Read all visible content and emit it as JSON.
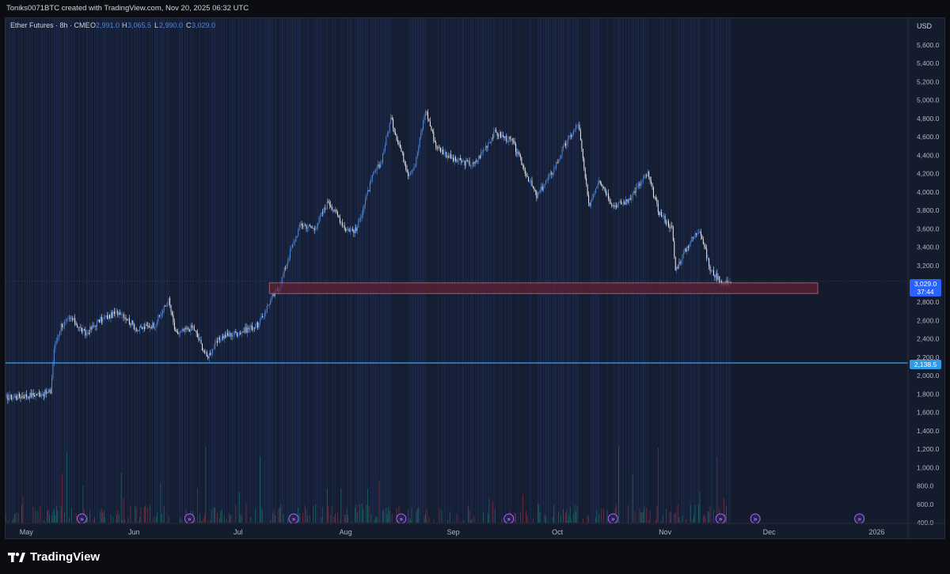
{
  "header": {
    "attribution": "Toniks0071BTC created with TradingView.com, Nov 20, 2025 06:32 UTC"
  },
  "legend": {
    "symbol": "Ether Futures · 8h · CME",
    "o_label": "O",
    "o_value": "2,991.0",
    "h_label": "H",
    "h_value": "3,065.5",
    "l_label": "L",
    "l_value": "2,990.0",
    "c_label": "C",
    "c_value": "3,029.0"
  },
  "price_axis": {
    "currency": "USD",
    "ticks": [
      "5,600.0",
      "5,400.0",
      "5,200.0",
      "5,000.0",
      "4,800.0",
      "4,600.0",
      "4,400.0",
      "4,200.0",
      "4,000.0",
      "3,800.0",
      "3,600.0",
      "3,400.0",
      "3,200.0",
      "2,800.0",
      "2,600.0",
      "2,400.0",
      "2,200.0",
      "2,000.0",
      "1,800.0",
      "1,600.0",
      "1,400.0",
      "1,200.0",
      "1,000.0",
      "800.0",
      "600.0",
      "400.0"
    ],
    "current_price_label": "3,029.0",
    "countdown_label": "37:44",
    "line_label": "2,138.5"
  },
  "time_axis": {
    "labels": [
      "May",
      "Jun",
      "Jul",
      "Aug",
      "Sep",
      "Oct",
      "Nov",
      "Dec",
      "2026"
    ]
  },
  "brand": {
    "name": "TradingView"
  },
  "colors": {
    "background": "#141b2d",
    "up_candle": "#4f86d9",
    "down_candle": "#e8e9ee",
    "volume_up": "#1f6e6a",
    "volume_down": "#8a2f3f",
    "horizontal_line": "#2f9be8",
    "zone_fill": "#5c2234",
    "zone_border": "#c4677c",
    "price_tag": "#2962ff"
  },
  "chart_data": {
    "type": "candlestick",
    "title": "Ether Futures · 8h · CME",
    "ylabel": "USD",
    "ylim": [
      400,
      5800
    ],
    "x_range": [
      "2025-04-25",
      "2026-01-10"
    ],
    "grid": false,
    "close_path": [
      [
        "2025-04-25",
        1760
      ],
      [
        "2025-05-03",
        1790
      ],
      [
        "2025-05-08",
        1820
      ],
      [
        "2025-05-09",
        2300
      ],
      [
        "2025-05-11",
        2550
      ],
      [
        "2025-05-14",
        2620
      ],
      [
        "2025-05-18",
        2450
      ],
      [
        "2025-05-22",
        2600
      ],
      [
        "2025-05-28",
        2700
      ],
      [
        "2025-06-02",
        2500
      ],
      [
        "2025-06-07",
        2560
      ],
      [
        "2025-06-11",
        2820
      ],
      [
        "2025-06-13",
        2450
      ],
      [
        "2025-06-18",
        2530
      ],
      [
        "2025-06-22",
        2200
      ],
      [
        "2025-06-26",
        2420
      ],
      [
        "2025-07-02",
        2480
      ],
      [
        "2025-07-07",
        2560
      ],
      [
        "2025-07-10",
        2800
      ],
      [
        "2025-07-13",
        2980
      ],
      [
        "2025-07-16",
        3350
      ],
      [
        "2025-07-19",
        3650
      ],
      [
        "2025-07-23",
        3600
      ],
      [
        "2025-07-27",
        3900
      ],
      [
        "2025-08-01",
        3600
      ],
      [
        "2025-08-04",
        3580
      ],
      [
        "2025-08-09",
        4200
      ],
      [
        "2025-08-11",
        4300
      ],
      [
        "2025-08-14",
        4800
      ],
      [
        "2025-08-19",
        4200
      ],
      [
        "2025-08-21",
        4300
      ],
      [
        "2025-08-24",
        4900
      ],
      [
        "2025-08-27",
        4500
      ],
      [
        "2025-09-01",
        4350
      ],
      [
        "2025-09-07",
        4300
      ],
      [
        "2025-09-13",
        4650
      ],
      [
        "2025-09-18",
        4550
      ],
      [
        "2025-09-22",
        4200
      ],
      [
        "2025-09-25",
        3950
      ],
      [
        "2025-09-30",
        4250
      ],
      [
        "2025-10-03",
        4500
      ],
      [
        "2025-10-07",
        4750
      ],
      [
        "2025-10-10",
        3850
      ],
      [
        "2025-10-13",
        4150
      ],
      [
        "2025-10-17",
        3850
      ],
      [
        "2025-10-21",
        3900
      ],
      [
        "2025-10-27",
        4200
      ],
      [
        "2025-10-30",
        3800
      ],
      [
        "2025-11-03",
        3600
      ],
      [
        "2025-11-04",
        3150
      ],
      [
        "2025-11-08",
        3450
      ],
      [
        "2025-11-11",
        3600
      ],
      [
        "2025-11-14",
        3150
      ],
      [
        "2025-11-18",
        3000
      ],
      [
        "2025-11-20",
        3029
      ]
    ],
    "series": [
      {
        "name": "Ether Futures",
        "last": {
          "open": 2991.0,
          "high": 3065.5,
          "low": 2990.0,
          "close": 3029.0
        }
      }
    ],
    "levels": [
      {
        "price": 2138.5
      }
    ],
    "zones": [
      {
        "from": "2025-07-10",
        "to": "2025-12-15",
        "low": 2895,
        "high": 3010
      }
    ],
    "volume_scale_max": 1200
  }
}
